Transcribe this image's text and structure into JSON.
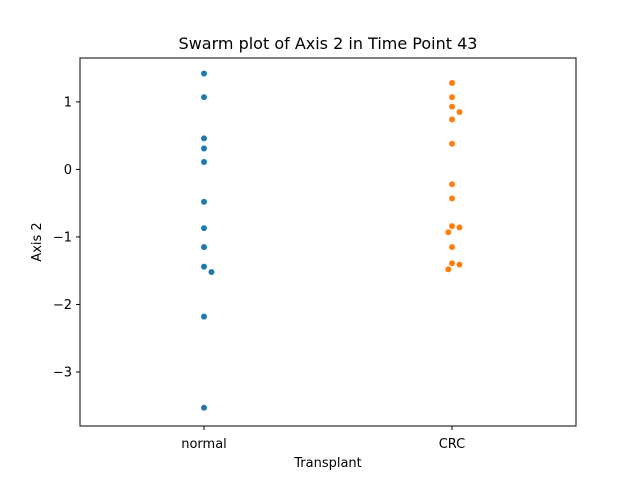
{
  "chart_data": {
    "type": "scatter",
    "subtype": "swarm",
    "title": "Swarm plot of Axis 2 in Time Point 43",
    "xlabel": "Transplant",
    "ylabel": "Axis 2",
    "categories": [
      "normal",
      "CRC"
    ],
    "ylim": [
      -3.8,
      1.65
    ],
    "yticks": [
      -3,
      -2,
      -1,
      0,
      1
    ],
    "ytick_labels": [
      "−3",
      "−2",
      "−1",
      "0",
      "1"
    ],
    "grid": false,
    "legend": "none",
    "colors": {
      "normal": "#1f77b4",
      "CRC": "#ff7f0e"
    },
    "series": [
      {
        "category": "normal",
        "values": [
          1.42,
          1.07,
          0.46,
          0.31,
          0.11,
          -0.48,
          -0.87,
          -1.15,
          -1.44,
          -1.52,
          -2.18,
          -3.53
        ]
      },
      {
        "category": "CRC",
        "values": [
          1.28,
          1.07,
          0.93,
          0.85,
          0.74,
          0.38,
          -0.22,
          -0.43,
          -0.84,
          -0.86,
          -0.93,
          -1.15,
          -1.39,
          -1.41,
          -1.48
        ]
      }
    ]
  }
}
